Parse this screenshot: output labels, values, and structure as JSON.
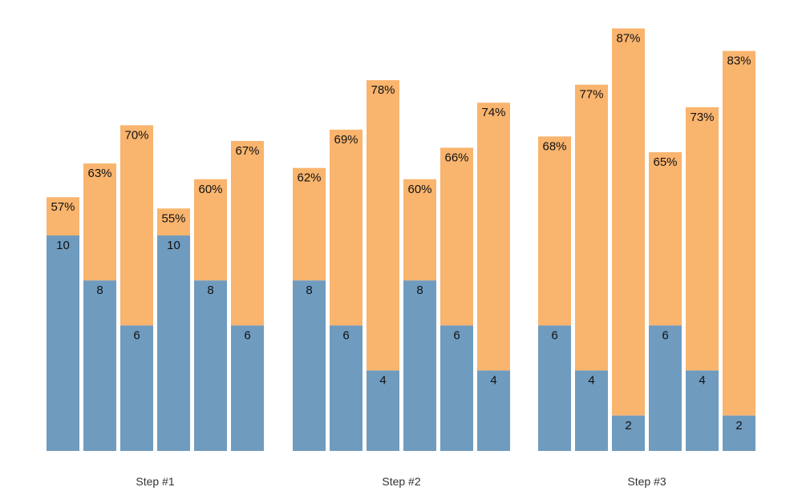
{
  "chart_data": {
    "type": "bar",
    "stacked": true,
    "title": "",
    "xlabel": "",
    "ylabel": "",
    "grid": false,
    "legend": "none",
    "colors": {
      "base": "#6f9bbf",
      "top": "#f9b46e"
    },
    "groups": [
      {
        "label": "Step #1",
        "bars": [
          {
            "value": 10,
            "pct_label": "57%",
            "total": 11.7
          },
          {
            "value": 8,
            "pct_label": "63%",
            "total": 13.2
          },
          {
            "value": 6,
            "pct_label": "70%",
            "total": 14.9
          },
          {
            "value": 10,
            "pct_label": "55%",
            "total": 11.2
          },
          {
            "value": 8,
            "pct_label": "60%",
            "total": 12.5
          },
          {
            "value": 6,
            "pct_label": "67%",
            "total": 14.2
          }
        ]
      },
      {
        "label": "Step #2",
        "bars": [
          {
            "value": 8,
            "pct_label": "62%",
            "total": 13.0
          },
          {
            "value": 6,
            "pct_label": "69%",
            "total": 14.7
          },
          {
            "value": 4,
            "pct_label": "78%",
            "total": 16.9
          },
          {
            "value": 8,
            "pct_label": "60%",
            "total": 12.5
          },
          {
            "value": 6,
            "pct_label": "66%",
            "total": 13.9
          },
          {
            "value": 4,
            "pct_label": "74%",
            "total": 15.9
          }
        ]
      },
      {
        "label": "Step #3",
        "bars": [
          {
            "value": 6,
            "pct_label": "68%",
            "total": 14.4
          },
          {
            "value": 4,
            "pct_label": "77%",
            "total": 16.7
          },
          {
            "value": 2,
            "pct_label": "87%",
            "total": 19.2
          },
          {
            "value": 6,
            "pct_label": "65%",
            "total": 13.7
          },
          {
            "value": 4,
            "pct_label": "73%",
            "total": 15.7
          },
          {
            "value": 2,
            "pct_label": "83%",
            "total": 18.2
          }
        ]
      }
    ]
  }
}
